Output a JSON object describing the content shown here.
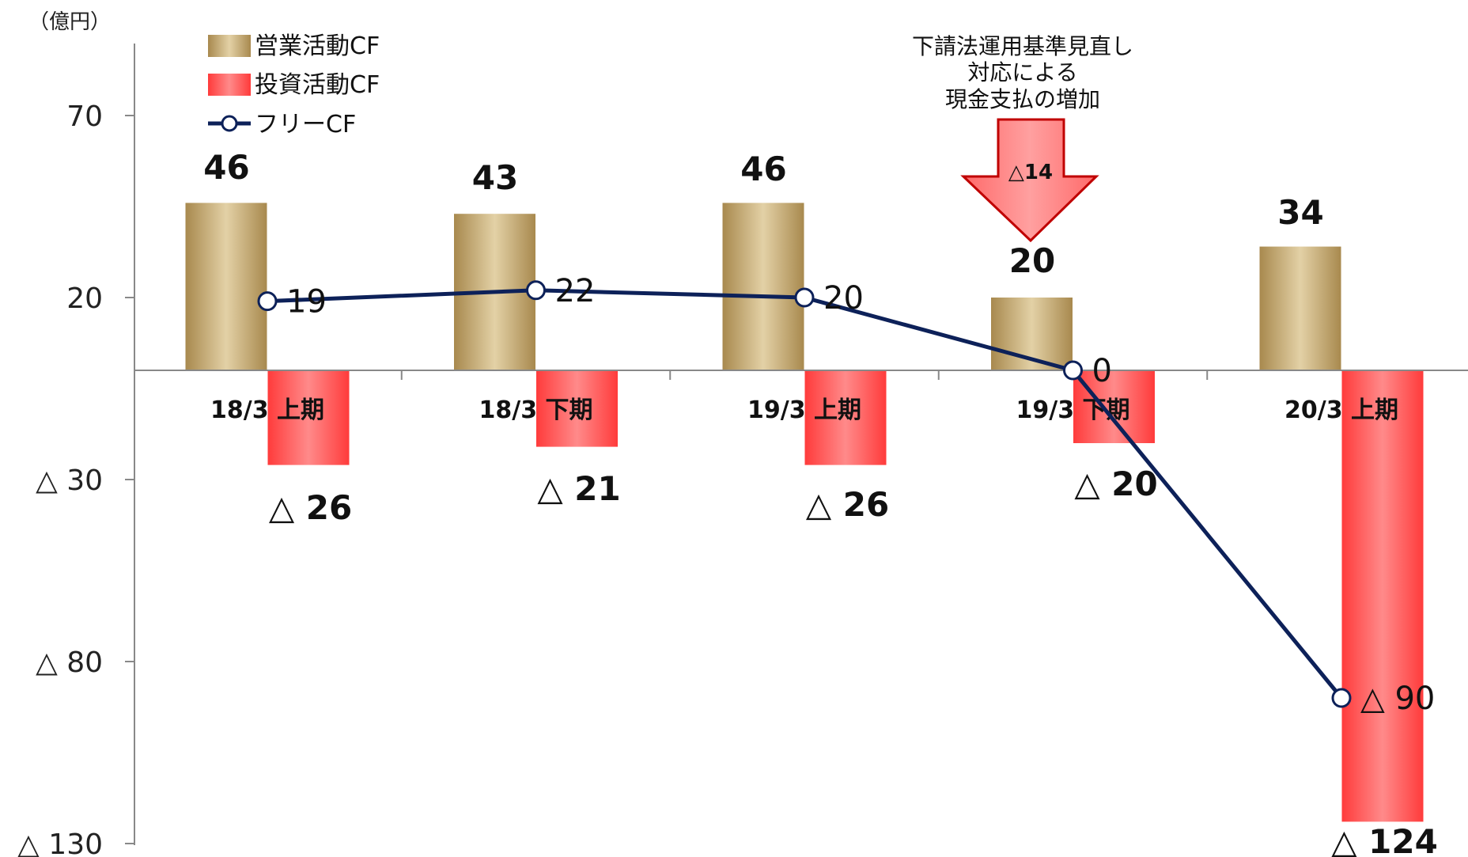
{
  "chart_data": {
    "type": "bar",
    "unit": "（億円）",
    "categories": [
      "18/3 上期",
      "18/3 下期",
      "19/3 上期",
      "19/3 下期",
      "20/3 上期"
    ],
    "ylim": [
      -130,
      90
    ],
    "yticks": [
      70,
      20,
      -30,
      -80,
      -130
    ],
    "ytick_labels": [
      "70",
      "20",
      "△ 30",
      "△ 80",
      "△ 130"
    ],
    "series": [
      {
        "name": "営業活動CF",
        "kind": "bar",
        "values": [
          46,
          43,
          46,
          20,
          34
        ],
        "labels": [
          "46",
          "43",
          "46",
          "20",
          "34"
        ]
      },
      {
        "name": "投資活動CF",
        "kind": "bar",
        "values": [
          -26,
          -21,
          -26,
          -20,
          -124
        ],
        "labels": [
          "△ 26",
          "△ 21",
          "△ 26",
          "△ 20",
          "△ 124"
        ]
      },
      {
        "name": "フリーCF",
        "kind": "line",
        "values": [
          19,
          22,
          20,
          0,
          -90
        ],
        "labels": [
          "19",
          "22",
          "20",
          "0",
          "△ 90"
        ]
      }
    ],
    "legend_position": "top-left",
    "grid": false,
    "annotation": {
      "lines": [
        "下請法運用基準見直し",
        "対応による",
        "現金支払の増加"
      ],
      "arrow_label": "△14",
      "category_index": 3
    }
  },
  "colors": {
    "operating_bar": "#c9b27e",
    "investing_bar": "#ff6f6f",
    "free_line": "#0d2159",
    "arrow_fill": "#ff8080",
    "arrow_stroke": "#c00000",
    "axis": "#888888"
  }
}
